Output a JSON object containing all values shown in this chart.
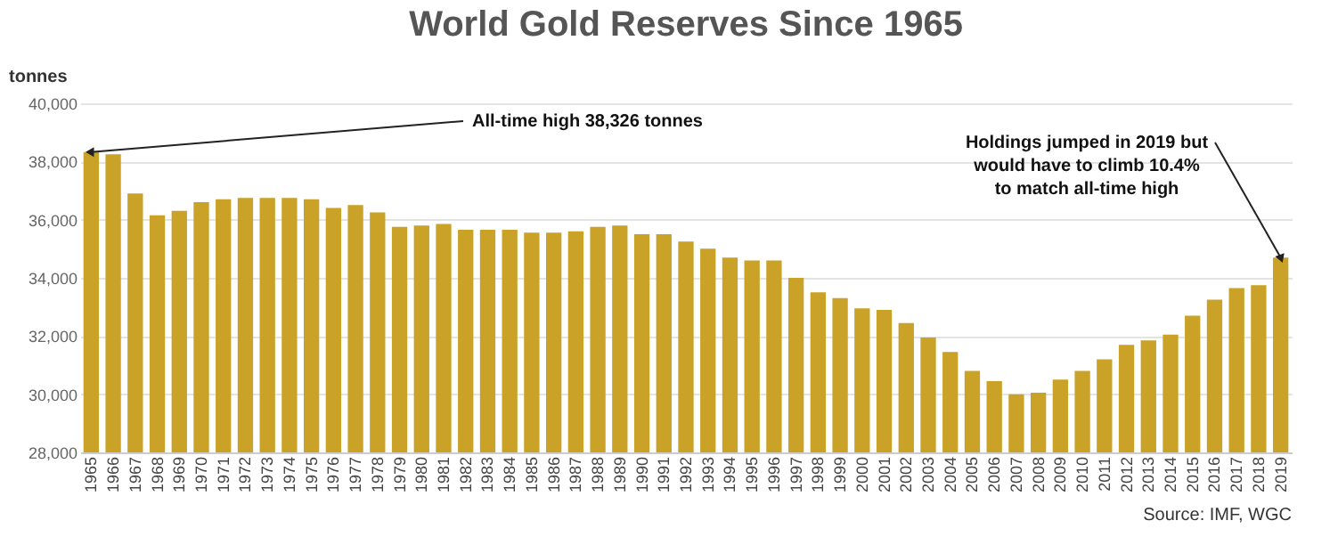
{
  "chart_data": {
    "type": "bar",
    "title": "World Gold Reserves Since 1965",
    "ylabel": "tonnes",
    "categories": [
      "1965",
      "1966",
      "1967",
      "1968",
      "1969",
      "1970",
      "1971",
      "1972",
      "1973",
      "1974",
      "1975",
      "1976",
      "1977",
      "1978",
      "1979",
      "1980",
      "1981",
      "1982",
      "1983",
      "1984",
      "1985",
      "1986",
      "1987",
      "1988",
      "1989",
      "1990",
      "1991",
      "1992",
      "1993",
      "1994",
      "1995",
      "1996",
      "1997",
      "1998",
      "1999",
      "2000",
      "2001",
      "2002",
      "2003",
      "2004",
      "2005",
      "2006",
      "2007",
      "2008",
      "2009",
      "2010",
      "2011",
      "2012",
      "2013",
      "2014",
      "2015",
      "2016",
      "2017",
      "2018",
      "2019"
    ],
    "series": [
      {
        "color": "#c9a227",
        "values": [
          38326,
          38250,
          36900,
          36150,
          36300,
          36600,
          36700,
          36750,
          36750,
          36750,
          36700,
          36400,
          36500,
          36250,
          35750,
          35800,
          35850,
          35650,
          35650,
          35650,
          35550,
          35550,
          35600,
          35750,
          35800,
          35500,
          35500,
          35250,
          35000,
          34700,
          34600,
          34600,
          34000,
          33500,
          33300,
          32950,
          32900,
          32450,
          31950,
          31450,
          30800,
          30450,
          30000,
          30050,
          30500,
          30800,
          31200,
          31700,
          31850,
          32050,
          32700,
          33250,
          33650,
          33750,
          34700
        ]
      }
    ],
    "ylim": [
      28000,
      40000
    ],
    "yticks": [
      {
        "value": 28000,
        "label": "28,000"
      },
      {
        "value": 30000,
        "label": "30,000"
      },
      {
        "value": 32000,
        "label": "32,000"
      },
      {
        "value": 34000,
        "label": "34,000"
      },
      {
        "value": 36000,
        "label": "36,000"
      },
      {
        "value": 38000,
        "label": "38,000"
      },
      {
        "value": 40000,
        "label": "40,000"
      }
    ],
    "grid": "y",
    "annotations": [
      {
        "text": "All-time high 38,326 tonnes",
        "x": "1965",
        "y": 38326
      },
      {
        "text": "Holdings jumped in 2019 but\nwould have to climb 10.4%\nto match all-time high",
        "x": "2019",
        "y": 34700
      },
      "Source: IMF, WGC"
    ]
  }
}
